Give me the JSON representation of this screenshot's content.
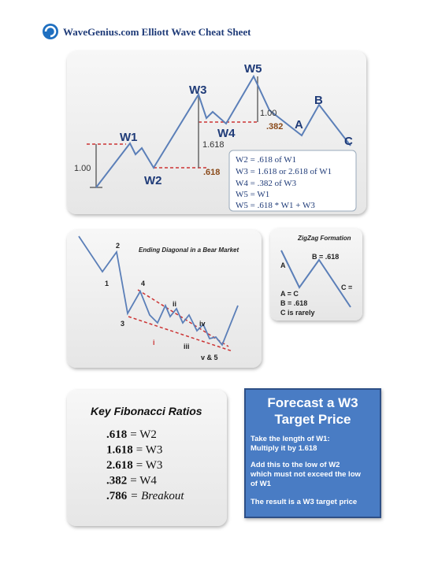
{
  "header": {
    "title": "WaveGenius.com Elliott Wave Cheat Sheet"
  },
  "wave_chart": {
    "labels": [
      "W1",
      "W2",
      "W3",
      "W4",
      "W5",
      "A",
      "B",
      "C"
    ],
    "measures": [
      "1.00",
      "1.618",
      ".618",
      "1.00",
      ".382"
    ],
    "rules": [
      "W2  = .618 of W1",
      "W3  = 1.618 or 2.618 of W1",
      "W4  = .382 of W3",
      "W5  = W1",
      "W5  = .618 * W1 + W3"
    ]
  },
  "diagonal": {
    "title": "Ending Diagonal in a Bear Market",
    "labels": [
      "1",
      "2",
      "3",
      "4",
      "i",
      "ii",
      "iii",
      "iv",
      "v & 5"
    ]
  },
  "zigzag": {
    "title": "ZigZag Formation",
    "labels": [
      "A",
      "B = .618",
      "C ="
    ],
    "notes": [
      "A = C",
      "B = .618",
      "C is rarely"
    ]
  },
  "fibonacci": {
    "title": "Key Fibonacci Ratios",
    "items": [
      {
        "ratio": ".618",
        "meaning": "= W2"
      },
      {
        "ratio": "1.618",
        "meaning": "= W3"
      },
      {
        "ratio": "2.618",
        "meaning": "= W3"
      },
      {
        "ratio": ".382",
        "meaning": "= W4"
      },
      {
        "ratio": ".786",
        "meaning": "= Breakout"
      }
    ]
  },
  "forecast": {
    "title": [
      "Forecast a W3",
      "Target Price"
    ],
    "lines": [
      "Take the length of W1:",
      "Multiply it by 1.618",
      "Add this to the low of W2",
      "which must not exceed the low",
      "of W1",
      "The result is a W3 target price"
    ]
  }
}
